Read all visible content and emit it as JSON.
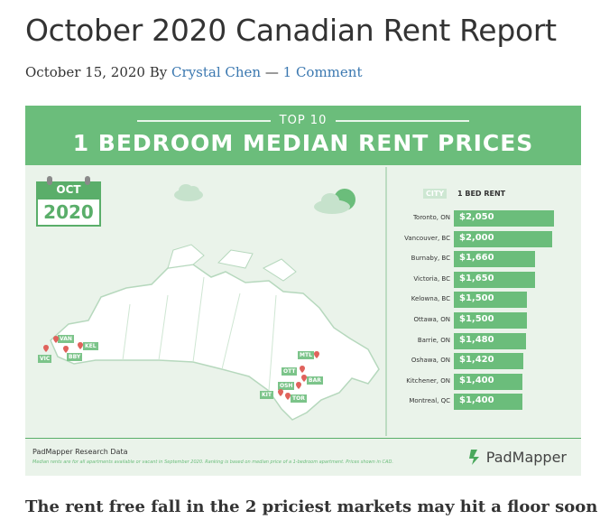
{
  "article": {
    "title": "October 2020 Canadian Rent Report",
    "date": "October 15, 2020",
    "by": "By",
    "author": "Crystal Chen",
    "sep": "—",
    "comments": "1 Comment",
    "subheading": "The rent free fall in the 2 priciest markets may hit a floor soon"
  },
  "infographic": {
    "top_label": "TOP 10",
    "main_title": "1 BEDROOM MEDIAN RENT PRICES",
    "calendar": {
      "month": "OCT",
      "year": "2020"
    },
    "col_city": "CITY",
    "col_rent": "1 BED RENT",
    "source": "PadMapper Research Data",
    "note": "Median rents are for all apartments available or vacant in September 2020. Ranking is based on median price of a 1-bedroom apartment. Prices shown in CAD.",
    "logo": "PadMapper",
    "map_pins": [
      "VAN",
      "KEL",
      "VIC",
      "BBY",
      "MTL",
      "OTT",
      "BAR",
      "OSH",
      "KIT",
      "TOR"
    ],
    "colors": {
      "accent": "#6bbd7b",
      "background": "#eaf3ea",
      "link": "#3b78b0"
    }
  },
  "chart_data": {
    "type": "bar",
    "categories": [
      "Toronto, ON",
      "Vancouver, BC",
      "Burnaby, BC",
      "Victoria, BC",
      "Kelowna, BC",
      "Ottawa, ON",
      "Barrie, ON",
      "Oshawa, ON",
      "Kitchener, ON",
      "Montreal, QC"
    ],
    "values": [
      2050,
      2000,
      1660,
      1650,
      1500,
      1500,
      1480,
      1420,
      1400,
      1400
    ],
    "labels": [
      "$2,050",
      "$2,000",
      "$1,660",
      "$1,650",
      "$1,500",
      "$1,500",
      "$1,480",
      "$1,420",
      "$1,400",
      "$1,400"
    ],
    "xlabel": "CITY",
    "ylabel": "1 BED RENT",
    "orientation": "horizontal"
  }
}
